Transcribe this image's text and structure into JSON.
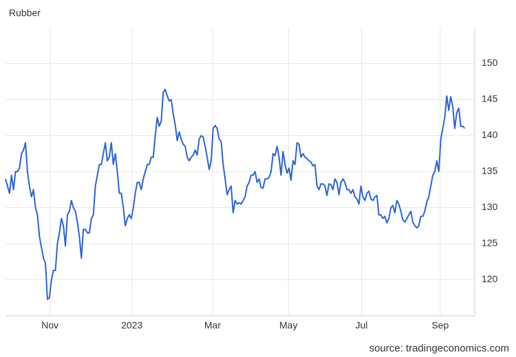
{
  "chart_data": {
    "type": "line",
    "title": "Rubber",
    "source": "source: tradingeconomics.com",
    "values": [
      134,
      133,
      132,
      134.5,
      132.5,
      135,
      135,
      135.5,
      137.5,
      138,
      139,
      135,
      133,
      131.5,
      132.5,
      130,
      129,
      126,
      124.5,
      123,
      122.3,
      117.3,
      117.5,
      120,
      121.3,
      121.3,
      125,
      126.5,
      128.5,
      127.5,
      124.7,
      129,
      129.5,
      131,
      130,
      129.5,
      128,
      126,
      123,
      127,
      127,
      126.5,
      126.5,
      128.5,
      129,
      133,
      134.5,
      136,
      136,
      137.5,
      139,
      136.5,
      137,
      139,
      136,
      137.5,
      135,
      132,
      132,
      130,
      127.5,
      128.5,
      129,
      128.5,
      130,
      132,
      133.5,
      133.5,
      132.5,
      134,
      135,
      136,
      136,
      137,
      137,
      140,
      142.5,
      141.3,
      142,
      146,
      146.4,
      145.5,
      144.8,
      145,
      143,
      141.5,
      139.3,
      140.5,
      139.5,
      138.8,
      138.5,
      137,
      136.5,
      137,
      137.3,
      138,
      137.3,
      139.5,
      140,
      139.8,
      138.5,
      137,
      135.3,
      136.5,
      141,
      141.4,
      141,
      139.5,
      139.2,
      136,
      134,
      131.8,
      132.5,
      133,
      129.3,
      131,
      130.5,
      130.7,
      130.5,
      131,
      131.5,
      133,
      133.5,
      134.5,
      134.5,
      135,
      133.5,
      134,
      132.8,
      132.7,
      134,
      134,
      134.2,
      135,
      137.5,
      137.2,
      138.5,
      137,
      134.5,
      137.8,
      136,
      134.8,
      135.5,
      133.8,
      136.5,
      136,
      139,
      138.8,
      137,
      137.5,
      137,
      136.8,
      136.5,
      136.3,
      135.8,
      136,
      133,
      132.5,
      133.3,
      133.3,
      133,
      131.7,
      133.3,
      133.2,
      132.5,
      134,
      133.5,
      131.8,
      133.5,
      134,
      133.5,
      132.5,
      132.5,
      132,
      132.5,
      131.5,
      131.2,
      130.5,
      133,
      131.5,
      131,
      132,
      132.3,
      131.2,
      131,
      131.5,
      131.7,
      129,
      129,
      128.5,
      128.8,
      127.9,
      128.5,
      130,
      130.3,
      129.3,
      131,
      130.5,
      129.5,
      128.3,
      128,
      128.5,
      129,
      129.5,
      128,
      127.5,
      127.2,
      127.5,
      128.8,
      128.8,
      129.5,
      130.8,
      131.5,
      133,
      134.5,
      135,
      136.5,
      135,
      139.5,
      141,
      142.5,
      145.5,
      143.5,
      145.4,
      144,
      141,
      143.2,
      143.8,
      141.3,
      141.3,
      141
    ],
    "color": "#2a63d9",
    "xlim": [
      0,
      235
    ],
    "xticks": [
      {
        "value": 22.3,
        "label": "Nov"
      },
      {
        "value": 63.3,
        "label": "2023"
      },
      {
        "value": 103.7,
        "label": "Mar"
      },
      {
        "value": 141.7,
        "label": "May"
      },
      {
        "value": 178.3,
        "label": "Jul"
      },
      {
        "value": 217.7,
        "label": "Sep"
      }
    ],
    "ylim": [
      115,
      155
    ],
    "yticks": [
      120,
      125,
      130,
      135,
      140,
      145,
      150
    ],
    "grid": true
  }
}
